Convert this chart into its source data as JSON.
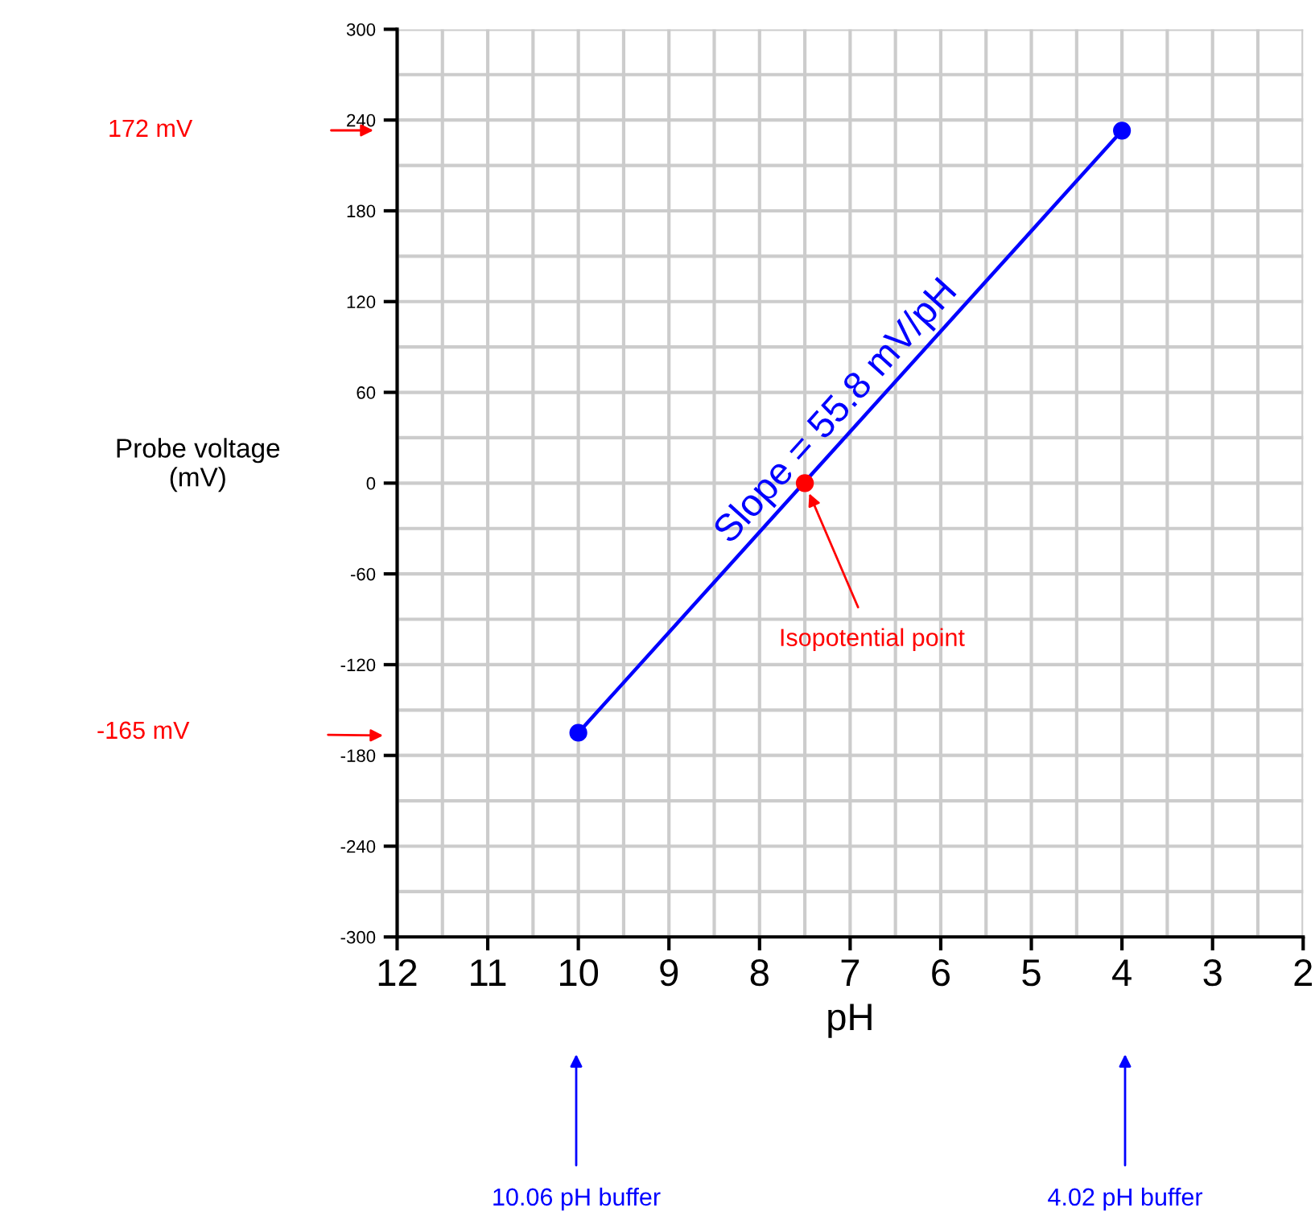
{
  "chart_data": {
    "type": "line",
    "xlabel": "pH",
    "ylabel": "Probe voltage\n(mV)",
    "xlim": [
      12,
      2
    ],
    "xticks": [
      12,
      11,
      10,
      9,
      8,
      7,
      6,
      5,
      4,
      3,
      2
    ],
    "ylim": [
      -300,
      300
    ],
    "yticks": [
      -300,
      -240,
      -180,
      -120,
      -60,
      0,
      60,
      120,
      180,
      240,
      300
    ],
    "grid": true,
    "marker": "circle",
    "line_style": "solid",
    "series": [
      {
        "color": "#0000ff",
        "x": [
          10,
          4
        ],
        "values": [
          -165,
          233
        ]
      },
      {
        "type": "scatter",
        "color": "#ff0000",
        "x": [
          7.5
        ],
        "values": [
          0
        ]
      }
    ],
    "annotations": [
      "Slope = 55.8 mV/pH",
      {
        "text": "Isopotential point",
        "x": 7.5,
        "y": 0
      },
      "172 mV",
      "-165 mV",
      "10.06 pH buffer",
      "4.02 pH buffer"
    ]
  }
}
